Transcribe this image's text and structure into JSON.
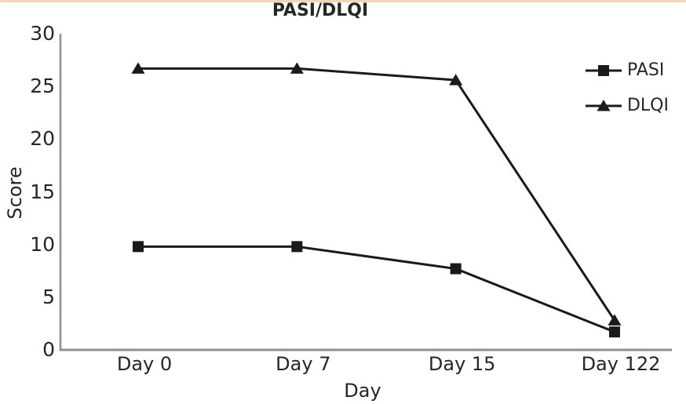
{
  "page": {
    "top_border_color": "#f5d5b5",
    "background": "#ffffff"
  },
  "chart_data": {
    "type": "line",
    "title": "PASI/DLQI",
    "xlabel": "Day",
    "ylabel": "Score",
    "categories": [
      "Day 0",
      "Day 7",
      "Day 15",
      "Day 122"
    ],
    "series": [
      {
        "name": "PASI",
        "marker": "square",
        "values": [
          9.8,
          9.8,
          7.7,
          1.7
        ]
      },
      {
        "name": "DLQI",
        "marker": "triangle",
        "values": [
          26.7,
          26.7,
          25.6,
          2.8
        ]
      }
    ],
    "ylim": [
      0,
      30
    ],
    "yticks": [
      0,
      5,
      10,
      15,
      20,
      25,
      30
    ],
    "grid": false,
    "legend_position": "upper-right",
    "axis_color": "#8f8f8f",
    "line_color": "#1a1a1a",
    "text_color": "#262626"
  }
}
